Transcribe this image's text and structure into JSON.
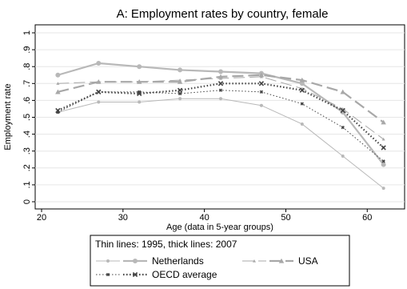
{
  "chart_data": {
    "type": "line",
    "title": "A: Employment rates by country, female",
    "xlabel": "Age (data in 5-year groups)",
    "ylabel": "Employment rate",
    "xlim": [
      20,
      64
    ],
    "ylim": [
      0,
      1
    ],
    "xticks": [
      "20",
      "30",
      "40",
      "50",
      "60"
    ],
    "yticks": [
      "0",
      ".1",
      ".2",
      ".3",
      ".4",
      ".5",
      ".6",
      ".7",
      ".8",
      ".9",
      "1"
    ],
    "x": [
      22,
      27,
      32,
      37,
      42,
      47,
      52,
      57,
      62
    ],
    "series": [
      {
        "name": "Netherlands",
        "year": "1995",
        "style": "thin",
        "color": "#b8b8b8",
        "dash": "solid",
        "marker": "circle",
        "values": [
          0.53,
          0.59,
          0.59,
          0.61,
          0.61,
          0.57,
          0.46,
          0.27,
          0.08
        ]
      },
      {
        "name": "Netherlands",
        "year": "2007",
        "style": "thick",
        "color": "#b8b8b8",
        "dash": "solid",
        "marker": "circle",
        "values": [
          0.75,
          0.82,
          0.8,
          0.78,
          0.77,
          0.76,
          0.7,
          0.53,
          0.22
        ]
      },
      {
        "name": "USA",
        "year": "1995",
        "style": "thin",
        "color": "#a8a8a8",
        "dash": "longdash",
        "marker": "triangle",
        "values": [
          0.7,
          0.71,
          0.71,
          0.72,
          0.73,
          0.74,
          0.67,
          0.55,
          0.37
        ]
      },
      {
        "name": "USA",
        "year": "2007",
        "style": "thick",
        "color": "#a8a8a8",
        "dash": "longdash",
        "marker": "triangle",
        "values": [
          0.65,
          0.71,
          0.71,
          0.71,
          0.74,
          0.75,
          0.72,
          0.65,
          0.47
        ]
      },
      {
        "name": "OECD average",
        "year": "1995",
        "style": "thin",
        "color": "#444444",
        "dash": "dotted",
        "marker": "x",
        "values": [
          0.53,
          0.65,
          0.65,
          0.64,
          0.66,
          0.65,
          0.58,
          0.44,
          0.24
        ]
      },
      {
        "name": "OECD average",
        "year": "2007",
        "style": "thick",
        "color": "#444444",
        "dash": "dotted",
        "marker": "x",
        "values": [
          0.54,
          0.65,
          0.64,
          0.66,
          0.7,
          0.7,
          0.66,
          0.54,
          0.32
        ]
      }
    ],
    "legend": {
      "position": "bottom",
      "note": "Thin lines: 1995, thick lines: 2007",
      "entries": [
        "Netherlands",
        "USA",
        "OECD average"
      ]
    },
    "grid": "horizontal"
  }
}
